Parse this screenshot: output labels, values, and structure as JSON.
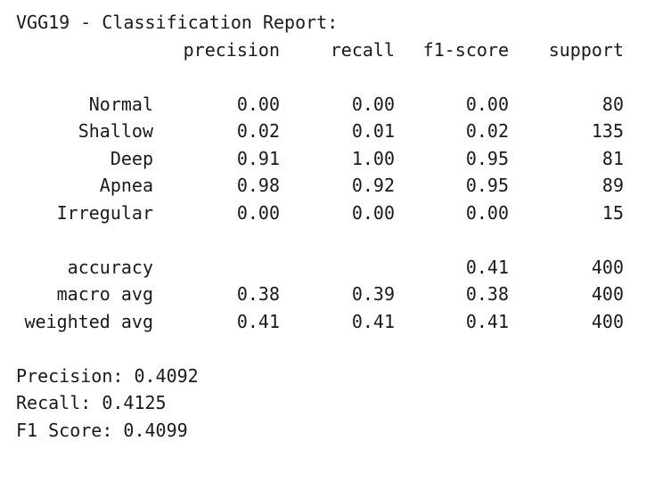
{
  "report": {
    "title": "VGG19 - Classification Report:",
    "headers": {
      "precision": "precision",
      "recall": "recall",
      "f1": "f1-score",
      "support": "support"
    },
    "rows": [
      {
        "label": "Normal",
        "precision": "0.00",
        "recall": "0.00",
        "f1": "0.00",
        "support": "80"
      },
      {
        "label": "Shallow",
        "precision": "0.02",
        "recall": "0.01",
        "f1": "0.02",
        "support": "135"
      },
      {
        "label": "Deep",
        "precision": "0.91",
        "recall": "1.00",
        "f1": "0.95",
        "support": "81"
      },
      {
        "label": "Apnea",
        "precision": "0.98",
        "recall": "0.92",
        "f1": "0.95",
        "support": "89"
      },
      {
        "label": "Irregular",
        "precision": "0.00",
        "recall": "0.00",
        "f1": "0.00",
        "support": "15"
      }
    ],
    "accuracy": {
      "label": "accuracy",
      "f1": "0.41",
      "support": "400"
    },
    "macro_avg": {
      "label": "macro avg",
      "precision": "0.38",
      "recall": "0.39",
      "f1": "0.38",
      "support": "400"
    },
    "weighted_avg": {
      "label": "weighted avg",
      "precision": "0.41",
      "recall": "0.41",
      "f1": "0.41",
      "support": "400"
    }
  },
  "summary": {
    "precision": "Precision: 0.4092",
    "recall": "Recall: 0.4125",
    "f1": "F1 Score: 0.4099"
  }
}
